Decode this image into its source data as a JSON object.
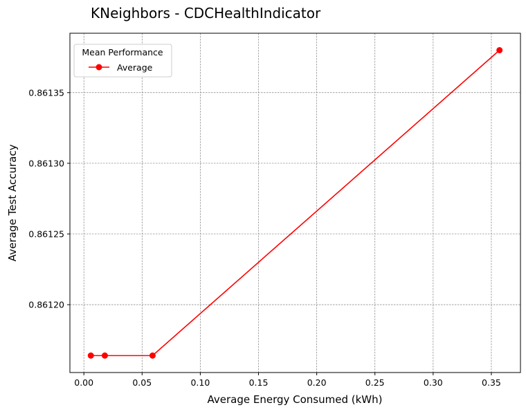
{
  "chart_data": {
    "type": "line",
    "title": "KNeighbors - CDCHealthIndicator",
    "xlabel": "Average Energy Consumed (kWh)",
    "ylabel": "Average Test Accuracy",
    "xlim": [
      -0.012,
      0.375
    ],
    "ylim": [
      0.861152,
      0.861392
    ],
    "xticks": [
      0.0,
      0.05,
      0.1,
      0.15,
      0.2,
      0.25,
      0.3,
      0.35
    ],
    "xtick_labels": [
      "0.00",
      "0.05",
      "0.10",
      "0.15",
      "0.20",
      "0.25",
      "0.30",
      "0.35"
    ],
    "yticks": [
      0.8612,
      0.86125,
      0.8613,
      0.86135
    ],
    "ytick_labels": [
      "0.86120",
      "0.86125",
      "0.86130",
      "0.86135"
    ],
    "grid": true,
    "legend": {
      "title": "Mean Performance",
      "placement": "top-left"
    },
    "series": [
      {
        "name": "Average",
        "color": "#ff0000",
        "marker": "circle",
        "x": [
          0.006,
          0.018,
          0.059,
          0.357
        ],
        "y": [
          0.861164,
          0.861164,
          0.861164,
          0.86138
        ]
      }
    ]
  }
}
